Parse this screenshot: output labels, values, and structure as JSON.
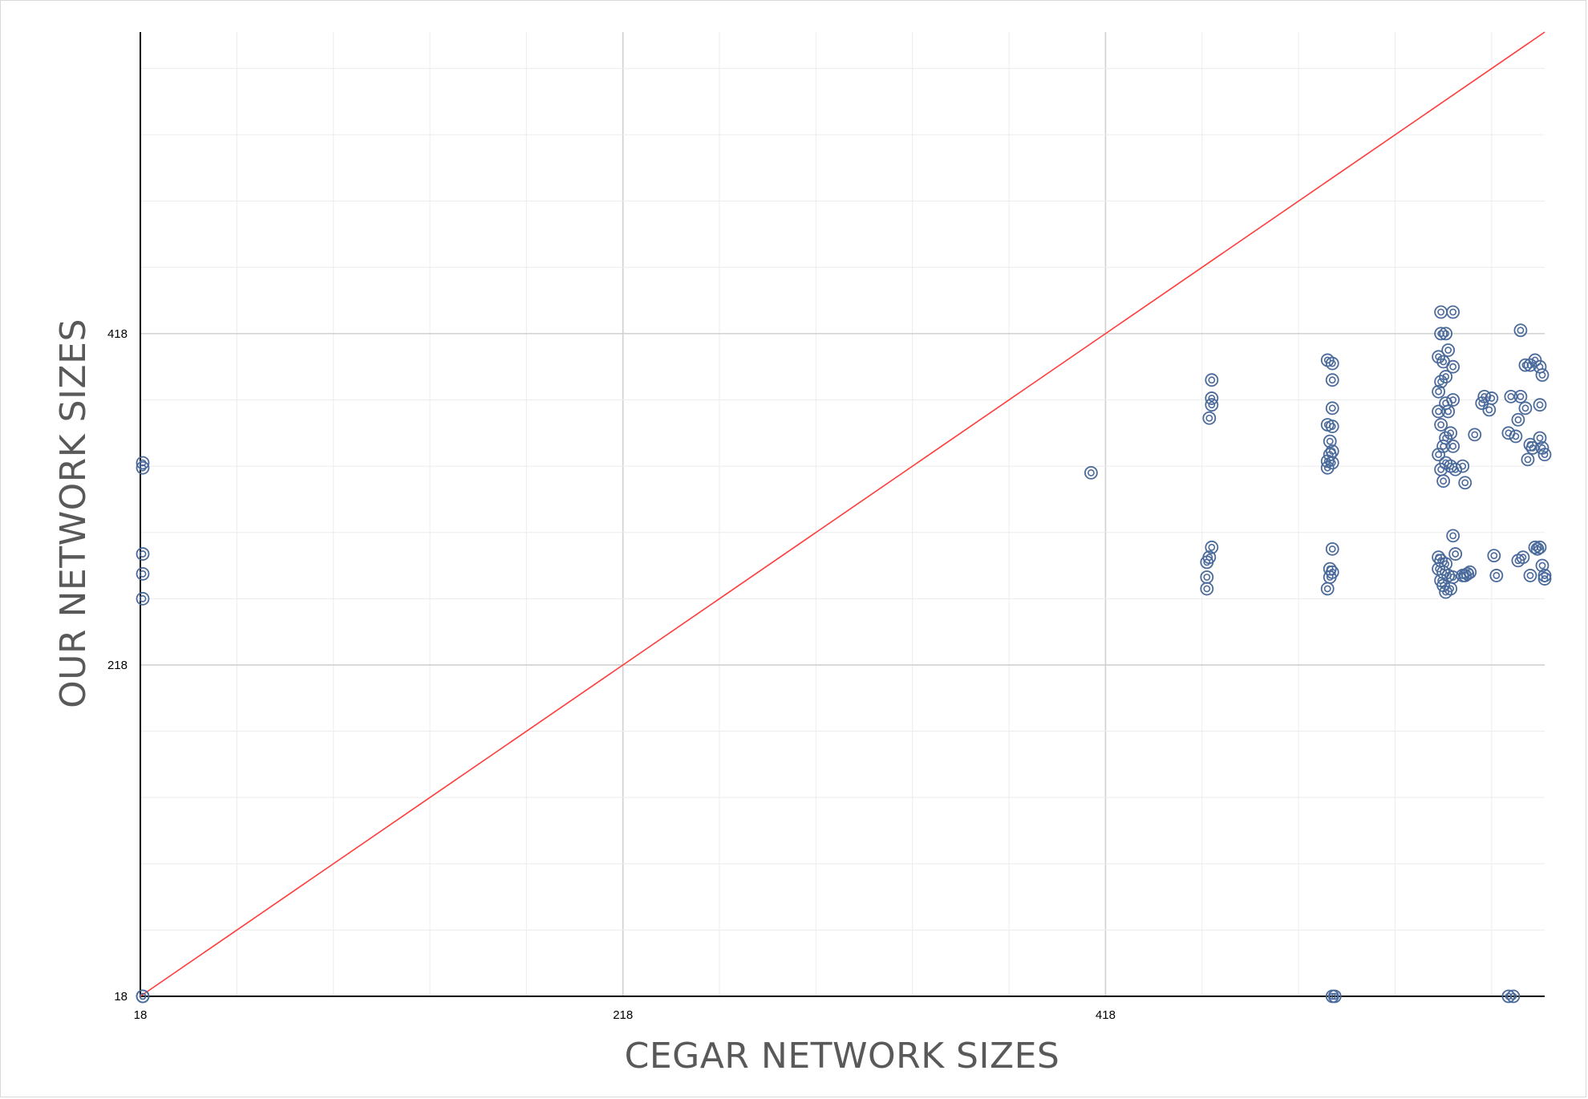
{
  "chart_data": {
    "type": "scatter",
    "title": "",
    "xlabel": "CEGAR NETWORK SIZES",
    "ylabel": "OUR NETWORK SIZES",
    "xlim": [
      18,
      600
    ],
    "ylim": [
      18,
      600
    ],
    "x_ticks": [
      "18",
      "218",
      "418"
    ],
    "y_ticks": [
      "18",
      "218",
      "418"
    ],
    "grid": true,
    "legend": "none",
    "marker_color": "#4a6a9b",
    "reference_line_color": "#ff3b3b",
    "reference_line": {
      "from": [
        18,
        18
      ],
      "to": [
        600,
        600
      ]
    },
    "series": [
      {
        "points": [
          [
            19,
            18
          ],
          [
            19,
            18
          ],
          [
            19,
            340
          ],
          [
            19,
            337
          ],
          [
            19,
            285
          ],
          [
            19,
            273
          ],
          [
            19,
            258
          ],
          [
            412,
            334
          ],
          [
            462,
            390
          ],
          [
            462,
            379
          ],
          [
            462,
            375
          ],
          [
            461,
            367
          ],
          [
            462,
            289
          ],
          [
            461,
            283
          ],
          [
            460,
            280
          ],
          [
            460,
            271
          ],
          [
            460,
            264
          ],
          [
            510,
            402
          ],
          [
            512,
            400
          ],
          [
            512,
            390
          ],
          [
            512,
            373
          ],
          [
            512,
            362
          ],
          [
            510,
            363
          ],
          [
            511,
            353
          ],
          [
            512,
            347
          ],
          [
            511,
            345
          ],
          [
            510,
            341
          ],
          [
            512,
            340
          ],
          [
            510,
            337
          ],
          [
            512,
            288
          ],
          [
            511,
            276
          ],
          [
            512,
            274
          ],
          [
            511,
            271
          ],
          [
            510,
            264
          ],
          [
            512,
            18
          ],
          [
            513,
            18
          ],
          [
            557,
            431
          ],
          [
            562,
            431
          ],
          [
            557,
            418
          ],
          [
            559,
            418
          ],
          [
            556,
            404
          ],
          [
            558,
            401
          ],
          [
            560,
            408
          ],
          [
            562,
            398
          ],
          [
            559,
            392
          ],
          [
            557,
            389
          ],
          [
            556,
            383
          ],
          [
            559,
            376
          ],
          [
            562,
            378
          ],
          [
            560,
            371
          ],
          [
            556,
            371
          ],
          [
            557,
            363
          ],
          [
            561,
            358
          ],
          [
            559,
            355
          ],
          [
            558,
            350
          ],
          [
            562,
            350
          ],
          [
            556,
            345
          ],
          [
            559,
            340
          ],
          [
            561,
            338
          ],
          [
            557,
            336
          ],
          [
            563,
            336
          ],
          [
            558,
            329
          ],
          [
            556,
            283
          ],
          [
            557,
            281
          ],
          [
            559,
            279
          ],
          [
            556,
            276
          ],
          [
            558,
            274
          ],
          [
            560,
            272
          ],
          [
            562,
            271
          ],
          [
            557,
            269
          ],
          [
            558,
            266
          ],
          [
            561,
            264
          ],
          [
            559,
            262
          ],
          [
            563,
            285
          ],
          [
            562,
            296
          ],
          [
            566,
            338
          ],
          [
            567,
            328
          ],
          [
            566,
            272
          ],
          [
            567,
            272
          ],
          [
            568,
            273
          ],
          [
            569,
            274
          ],
          [
            571,
            357
          ],
          [
            574,
            376
          ],
          [
            575,
            380
          ],
          [
            577,
            372
          ],
          [
            578,
            379
          ],
          [
            579,
            284
          ],
          [
            580,
            272
          ],
          [
            585,
            358
          ],
          [
            586,
            380
          ],
          [
            588,
            356
          ],
          [
            589,
            366
          ],
          [
            590,
            380
          ],
          [
            592,
            373
          ],
          [
            593,
            342
          ],
          [
            594,
            351
          ],
          [
            595,
            349
          ],
          [
            598,
            375
          ],
          [
            589,
            281
          ],
          [
            591,
            283
          ],
          [
            594,
            272
          ],
          [
            596,
            289
          ],
          [
            597,
            288
          ],
          [
            598,
            289
          ],
          [
            599,
            278
          ],
          [
            600,
            272
          ],
          [
            600,
            270
          ],
          [
            590,
            420
          ],
          [
            592,
            399
          ],
          [
            594,
            399
          ],
          [
            596,
            402
          ],
          [
            598,
            398
          ],
          [
            599,
            393
          ],
          [
            598,
            355
          ],
          [
            599,
            349
          ],
          [
            600,
            345
          ],
          [
            585,
            18
          ],
          [
            587,
            18
          ]
        ]
      }
    ]
  }
}
